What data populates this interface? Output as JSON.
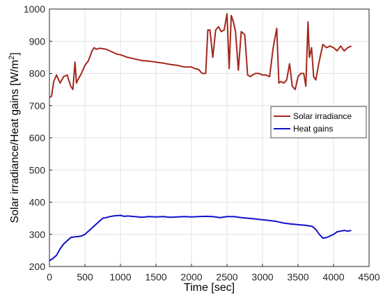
{
  "chart_data": {
    "type": "line",
    "title": "",
    "xlabel": "Time [sec]",
    "ylabel": "Solar irradiance/Heat gains [W/m",
    "ylabel_superscript": "2",
    "ylabel_suffix": "]",
    "xlim": [
      0,
      4500
    ],
    "ylim": [
      200,
      1000
    ],
    "xticks": [
      0,
      500,
      1000,
      1500,
      2000,
      2500,
      3000,
      3500,
      4000,
      4500
    ],
    "yticks": [
      200,
      300,
      400,
      500,
      600,
      700,
      800,
      900,
      1000
    ],
    "grid": true,
    "legend": "right",
    "series": [
      {
        "name": "Solar irradiance",
        "color": "#a2271c",
        "x": [
          0,
          30,
          60,
          100,
          150,
          200,
          250,
          300,
          330,
          360,
          380,
          400,
          450,
          500,
          550,
          600,
          630,
          660,
          700,
          750,
          800,
          850,
          900,
          950,
          1000,
          1100,
          1200,
          1300,
          1400,
          1500,
          1600,
          1700,
          1800,
          1900,
          2000,
          2050,
          2100,
          2150,
          2200,
          2230,
          2260,
          2300,
          2340,
          2380,
          2420,
          2460,
          2500,
          2530,
          2560,
          2590,
          2620,
          2660,
          2700,
          2750,
          2790,
          2830,
          2860,
          2900,
          2950,
          3000,
          3050,
          3100,
          3150,
          3200,
          3230,
          3260,
          3300,
          3340,
          3380,
          3420,
          3460,
          3500,
          3540,
          3580,
          3610,
          3640,
          3660,
          3690,
          3720,
          3750,
          3800,
          3850,
          3900,
          3950,
          4000,
          4050,
          4100,
          4150,
          4200,
          4250
        ],
        "values": [
          725,
          730,
          775,
          795,
          770,
          790,
          795,
          760,
          750,
          835,
          770,
          780,
          800,
          825,
          840,
          870,
          880,
          875,
          878,
          877,
          875,
          870,
          865,
          860,
          858,
          850,
          845,
          840,
          838,
          835,
          832,
          828,
          825,
          820,
          820,
          815,
          812,
          800,
          800,
          935,
          935,
          850,
          935,
          945,
          930,
          935,
          985,
          815,
          980,
          960,
          930,
          810,
          930,
          920,
          795,
          790,
          795,
          800,
          800,
          795,
          795,
          790,
          880,
          940,
          770,
          775,
          770,
          780,
          830,
          760,
          750,
          790,
          800,
          800,
          760,
          960,
          850,
          880,
          790,
          780,
          840,
          890,
          880,
          885,
          880,
          870,
          885,
          870,
          880,
          885
        ]
      },
      {
        "name": "Heat gains",
        "color": "#1010cc",
        "x": [
          0,
          50,
          100,
          150,
          200,
          250,
          300,
          350,
          400,
          450,
          500,
          550,
          600,
          650,
          700,
          750,
          800,
          850,
          900,
          950,
          1000,
          1050,
          1100,
          1200,
          1300,
          1400,
          1500,
          1600,
          1700,
          1800,
          1900,
          2000,
          2100,
          2200,
          2300,
          2400,
          2500,
          2600,
          2700,
          2800,
          2900,
          3000,
          3100,
          3200,
          3300,
          3400,
          3500,
          3600,
          3700,
          3750,
          3800,
          3850,
          3900,
          3950,
          4000,
          4050,
          4100,
          4150,
          4200,
          4250
        ],
        "values": [
          218,
          225,
          235,
          255,
          270,
          280,
          290,
          292,
          293,
          295,
          300,
          310,
          320,
          330,
          340,
          350,
          352,
          355,
          357,
          358,
          359,
          356,
          357,
          355,
          353,
          355,
          354,
          355,
          353,
          354,
          355,
          354,
          355,
          356,
          355,
          352,
          355,
          355,
          352,
          350,
          348,
          345,
          343,
          340,
          335,
          332,
          330,
          328,
          325,
          315,
          300,
          288,
          290,
          295,
          300,
          308,
          310,
          312,
          310,
          312
        ]
      }
    ]
  }
}
